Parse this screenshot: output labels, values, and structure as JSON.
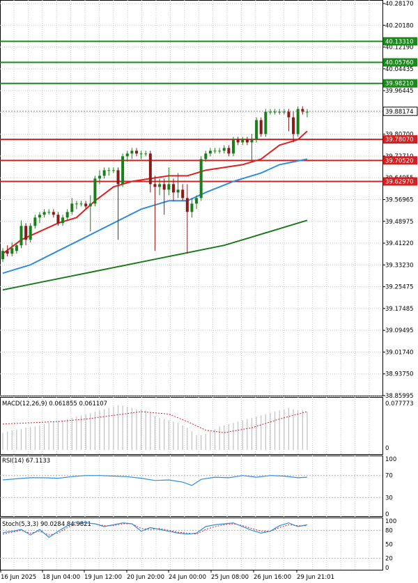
{
  "chart_data": {
    "type": "candlestick",
    "main": {
      "y_ticks": [
        "40.28170",
        "40.20180",
        "40.12190",
        "40.04435",
        "39.96445",
        "39.88174",
        "39.80700",
        "39.72710",
        "39.64955",
        "39.56965",
        "39.48975",
        "39.41220",
        "39.33230",
        "39.25475",
        "39.17485",
        "39.09495",
        "39.01740",
        "38.93750",
        "38.85995"
      ],
      "current_price": "39.88174",
      "resistance_levels": [
        "40.13310",
        "40.05760",
        "39.98210"
      ],
      "support_levels": [
        "39.78070",
        "39.70520",
        "39.62970"
      ],
      "candles": [
        [
          39.35,
          39.39,
          39.34,
          39.38
        ],
        [
          39.38,
          39.4,
          39.36,
          39.37
        ],
        [
          39.37,
          39.41,
          39.36,
          39.39
        ],
        [
          39.38,
          39.41,
          39.37,
          39.4
        ],
        [
          39.4,
          39.49,
          39.39,
          39.47
        ],
        [
          39.47,
          39.48,
          39.4,
          39.42
        ],
        [
          39.42,
          39.48,
          39.41,
          39.47
        ],
        [
          39.47,
          39.51,
          39.46,
          39.5
        ],
        [
          39.5,
          39.52,
          39.48,
          39.51
        ],
        [
          39.51,
          39.53,
          39.5,
          39.52
        ],
        [
          39.52,
          39.53,
          39.51,
          39.52
        ],
        [
          39.52,
          39.53,
          39.5,
          39.51
        ],
        [
          39.51,
          39.52,
          39.47,
          39.48
        ],
        [
          39.48,
          39.51,
          39.47,
          39.5
        ],
        [
          39.5,
          39.53,
          39.49,
          39.52
        ],
        [
          39.52,
          39.57,
          39.51,
          39.55
        ],
        [
          39.55,
          39.56,
          39.53,
          39.55
        ],
        [
          39.55,
          39.56,
          39.54,
          39.55
        ],
        [
          39.55,
          39.56,
          39.53,
          39.54
        ],
        [
          39.54,
          39.58,
          39.45,
          39.55
        ],
        [
          39.55,
          39.65,
          39.54,
          39.64
        ],
        [
          39.64,
          39.67,
          39.62,
          39.65
        ],
        [
          39.65,
          39.68,
          39.64,
          39.67
        ],
        [
          39.67,
          39.68,
          39.65,
          39.67
        ],
        [
          39.67,
          39.68,
          39.66,
          39.67
        ],
        [
          39.67,
          39.68,
          39.42,
          39.62
        ],
        [
          39.62,
          39.73,
          39.61,
          39.72
        ],
        [
          39.72,
          39.74,
          39.7,
          39.73
        ],
        [
          39.73,
          39.75,
          39.71,
          39.74
        ],
        [
          39.74,
          39.75,
          39.72,
          39.73
        ],
        [
          39.73,
          39.74,
          39.71,
          39.73
        ],
        [
          39.73,
          39.74,
          39.72,
          39.73
        ],
        [
          39.73,
          39.74,
          39.59,
          39.62
        ],
        [
          39.62,
          39.65,
          39.38,
          39.61
        ],
        [
          39.61,
          39.64,
          39.58,
          39.62
        ],
        [
          39.62,
          39.64,
          39.51,
          39.6
        ],
        [
          39.6,
          39.68,
          39.58,
          39.62
        ],
        [
          39.62,
          39.64,
          39.56,
          39.59
        ],
        [
          39.59,
          39.66,
          39.57,
          39.6
        ],
        [
          39.6,
          39.62,
          39.56,
          39.57
        ],
        [
          39.57,
          39.62,
          39.37,
          39.52
        ],
        [
          39.52,
          39.57,
          39.5,
          39.55
        ],
        [
          39.55,
          39.58,
          39.53,
          39.57
        ],
        [
          39.57,
          39.72,
          39.56,
          39.71
        ],
        [
          39.71,
          39.74,
          39.7,
          39.73
        ],
        [
          39.73,
          39.75,
          39.72,
          39.74
        ],
        [
          39.74,
          39.75,
          39.73,
          39.74
        ],
        [
          39.74,
          39.75,
          39.73,
          39.74
        ],
        [
          39.74,
          39.76,
          39.73,
          39.75
        ],
        [
          39.75,
          39.76,
          39.72,
          39.73
        ],
        [
          39.73,
          39.79,
          39.72,
          39.78
        ],
        [
          39.78,
          39.79,
          39.76,
          39.77
        ],
        [
          39.77,
          39.79,
          39.76,
          39.78
        ],
        [
          39.78,
          39.79,
          39.76,
          39.77
        ],
        [
          39.77,
          39.8,
          39.7,
          39.78
        ],
        [
          39.78,
          39.86,
          39.77,
          39.85
        ],
        [
          39.85,
          39.86,
          39.79,
          39.8
        ],
        [
          39.8,
          39.89,
          39.79,
          39.88
        ],
        [
          39.88,
          39.89,
          39.87,
          39.88
        ],
        [
          39.88,
          39.89,
          39.87,
          39.88
        ],
        [
          39.88,
          39.89,
          39.87,
          39.88
        ],
        [
          39.88,
          39.89,
          39.87,
          39.88
        ],
        [
          39.88,
          39.89,
          39.81,
          39.86
        ],
        [
          39.86,
          39.88,
          39.77,
          39.8
        ],
        [
          39.8,
          39.9,
          39.79,
          39.89
        ],
        [
          39.89,
          39.9,
          39.87,
          39.88
        ],
        [
          39.88,
          39.89,
          39.86,
          39.88
        ]
      ],
      "ma_fast": [
        [
          0,
          39.37
        ],
        [
          4,
          39.42
        ],
        [
          8,
          39.45
        ],
        [
          12,
          39.48
        ],
        [
          16,
          39.5
        ],
        [
          20,
          39.56
        ],
        [
          24,
          39.61
        ],
        [
          28,
          39.63
        ],
        [
          32,
          39.64
        ],
        [
          36,
          39.65
        ],
        [
          40,
          39.65
        ],
        [
          44,
          39.67
        ],
        [
          48,
          39.68
        ],
        [
          52,
          39.69
        ],
        [
          56,
          39.71
        ],
        [
          60,
          39.76
        ],
        [
          64,
          39.78
        ],
        [
          66,
          39.81
        ]
      ],
      "ma_mid": [
        [
          0,
          39.3
        ],
        [
          6,
          39.33
        ],
        [
          12,
          39.38
        ],
        [
          18,
          39.43
        ],
        [
          24,
          39.48
        ],
        [
          30,
          39.53
        ],
        [
          36,
          39.56
        ],
        [
          40,
          39.56
        ],
        [
          44,
          39.59
        ],
        [
          50,
          39.63
        ],
        [
          56,
          39.66
        ],
        [
          60,
          39.69
        ],
        [
          66,
          39.71
        ]
      ],
      "ma_slow": [
        [
          0,
          39.24
        ],
        [
          6,
          39.26
        ],
        [
          12,
          39.28
        ],
        [
          18,
          39.3
        ],
        [
          24,
          39.32
        ],
        [
          30,
          39.34
        ],
        [
          36,
          39.36
        ],
        [
          42,
          39.38
        ],
        [
          48,
          39.4
        ],
        [
          54,
          39.43
        ],
        [
          60,
          39.46
        ],
        [
          66,
          39.49
        ]
      ]
    },
    "macd": {
      "label": "MACD(12,26,9) 0.061855 0.061107",
      "y_ticks": [
        "0.077773",
        "0"
      ],
      "histogram": [
        0.028,
        0.03,
        0.032,
        0.033,
        0.034,
        0.036,
        0.037,
        0.038,
        0.04,
        0.042,
        0.044,
        0.046,
        0.047,
        0.048,
        0.05,
        0.052,
        0.054,
        0.056,
        0.058,
        0.06,
        0.062,
        0.064,
        0.066,
        0.068,
        0.07,
        0.072,
        0.072,
        0.07,
        0.068,
        0.066,
        0.066,
        0.064,
        0.06,
        0.055,
        0.052,
        0.05,
        0.048,
        0.046,
        0.044,
        0.04,
        0.036,
        0.03,
        0.024,
        0.024,
        0.026,
        0.03,
        0.034,
        0.038,
        0.04,
        0.042,
        0.044,
        0.046,
        0.048,
        0.05,
        0.052,
        0.054,
        0.056,
        0.058,
        0.06,
        0.062,
        0.064,
        0.066,
        0.068,
        0.066,
        0.064,
        0.064,
        0.062
      ],
      "signal": [
        [
          0,
          0.042
        ],
        [
          6,
          0.044
        ],
        [
          12,
          0.046
        ],
        [
          18,
          0.05
        ],
        [
          24,
          0.056
        ],
        [
          30,
          0.062
        ],
        [
          36,
          0.058
        ],
        [
          40,
          0.046
        ],
        [
          44,
          0.032
        ],
        [
          48,
          0.028
        ],
        [
          54,
          0.036
        ],
        [
          60,
          0.05
        ],
        [
          66,
          0.062
        ]
      ]
    },
    "rsi": {
      "label": "RSI(14) 67.1133",
      "y_ticks": [
        "100",
        "70",
        "30",
        "0"
      ],
      "line": [
        [
          0,
          62
        ],
        [
          3,
          64
        ],
        [
          6,
          66
        ],
        [
          9,
          66
        ],
        [
          12,
          65
        ],
        [
          15,
          68
        ],
        [
          18,
          70
        ],
        [
          21,
          70
        ],
        [
          24,
          69
        ],
        [
          27,
          68
        ],
        [
          30,
          65
        ],
        [
          33,
          61
        ],
        [
          36,
          62
        ],
        [
          39,
          58
        ],
        [
          41,
          52
        ],
        [
          43,
          63
        ],
        [
          46,
          67
        ],
        [
          49,
          66
        ],
        [
          52,
          70
        ],
        [
          55,
          67
        ],
        [
          58,
          70
        ],
        [
          61,
          69
        ],
        [
          64,
          66
        ],
        [
          66,
          67
        ]
      ]
    },
    "stoch": {
      "label": "Stoch(5,3,3) 90.0284 84.9821",
      "y_ticks": [
        "100",
        "80",
        "50",
        "20",
        "0"
      ],
      "k": [
        [
          0,
          75
        ],
        [
          2,
          78
        ],
        [
          4,
          82
        ],
        [
          6,
          70
        ],
        [
          8,
          82
        ],
        [
          10,
          65
        ],
        [
          12,
          78
        ],
        [
          14,
          90
        ],
        [
          16,
          98
        ],
        [
          18,
          96
        ],
        [
          20,
          94
        ],
        [
          22,
          88
        ],
        [
          24,
          92
        ],
        [
          26,
          96
        ],
        [
          28,
          94
        ],
        [
          30,
          78
        ],
        [
          32,
          86
        ],
        [
          34,
          82
        ],
        [
          36,
          78
        ],
        [
          38,
          74
        ],
        [
          40,
          72
        ],
        [
          42,
          74
        ],
        [
          44,
          88
        ],
        [
          46,
          92
        ],
        [
          48,
          94
        ],
        [
          50,
          96
        ],
        [
          52,
          88
        ],
        [
          54,
          80
        ],
        [
          56,
          74
        ],
        [
          58,
          78
        ],
        [
          60,
          90
        ],
        [
          62,
          96
        ],
        [
          64,
          88
        ],
        [
          66,
          92
        ]
      ],
      "d": [
        [
          0,
          72
        ],
        [
          2,
          76
        ],
        [
          4,
          80
        ],
        [
          6,
          74
        ],
        [
          8,
          78
        ],
        [
          10,
          70
        ],
        [
          12,
          74
        ],
        [
          14,
          86
        ],
        [
          16,
          94
        ],
        [
          18,
          96
        ],
        [
          20,
          94
        ],
        [
          22,
          90
        ],
        [
          24,
          90
        ],
        [
          26,
          94
        ],
        [
          28,
          94
        ],
        [
          30,
          84
        ],
        [
          32,
          82
        ],
        [
          34,
          84
        ],
        [
          36,
          80
        ],
        [
          38,
          76
        ],
        [
          40,
          74
        ],
        [
          42,
          72
        ],
        [
          44,
          82
        ],
        [
          46,
          88
        ],
        [
          48,
          92
        ],
        [
          50,
          94
        ],
        [
          52,
          90
        ],
        [
          54,
          84
        ],
        [
          56,
          78
        ],
        [
          58,
          78
        ],
        [
          60,
          86
        ],
        [
          62,
          92
        ],
        [
          64,
          90
        ],
        [
          66,
          90
        ]
      ]
    },
    "x_labels": [
      "16 Jun 2025",
      "18 Jun 04:00",
      "19 Jun 12:00",
      "20 Jun 20:00",
      "24 Jun 00:00",
      "25 Jun 08:00",
      "26 Jun 16:00",
      "29 Jun 21:01"
    ]
  },
  "colors": {
    "bull": "#1a7f1a",
    "bear": "#8b1a1a",
    "ma_fast": "#e02020",
    "ma_mid": "#2e8de0",
    "ma_slow": "#1a7a1a",
    "resistance": "#1a8a1a",
    "support": "#d42020",
    "macd_signal": "#d42020",
    "rsi": "#2e8de0",
    "stoch_k": "#2e8de0",
    "stoch_d": "#d42020"
  }
}
